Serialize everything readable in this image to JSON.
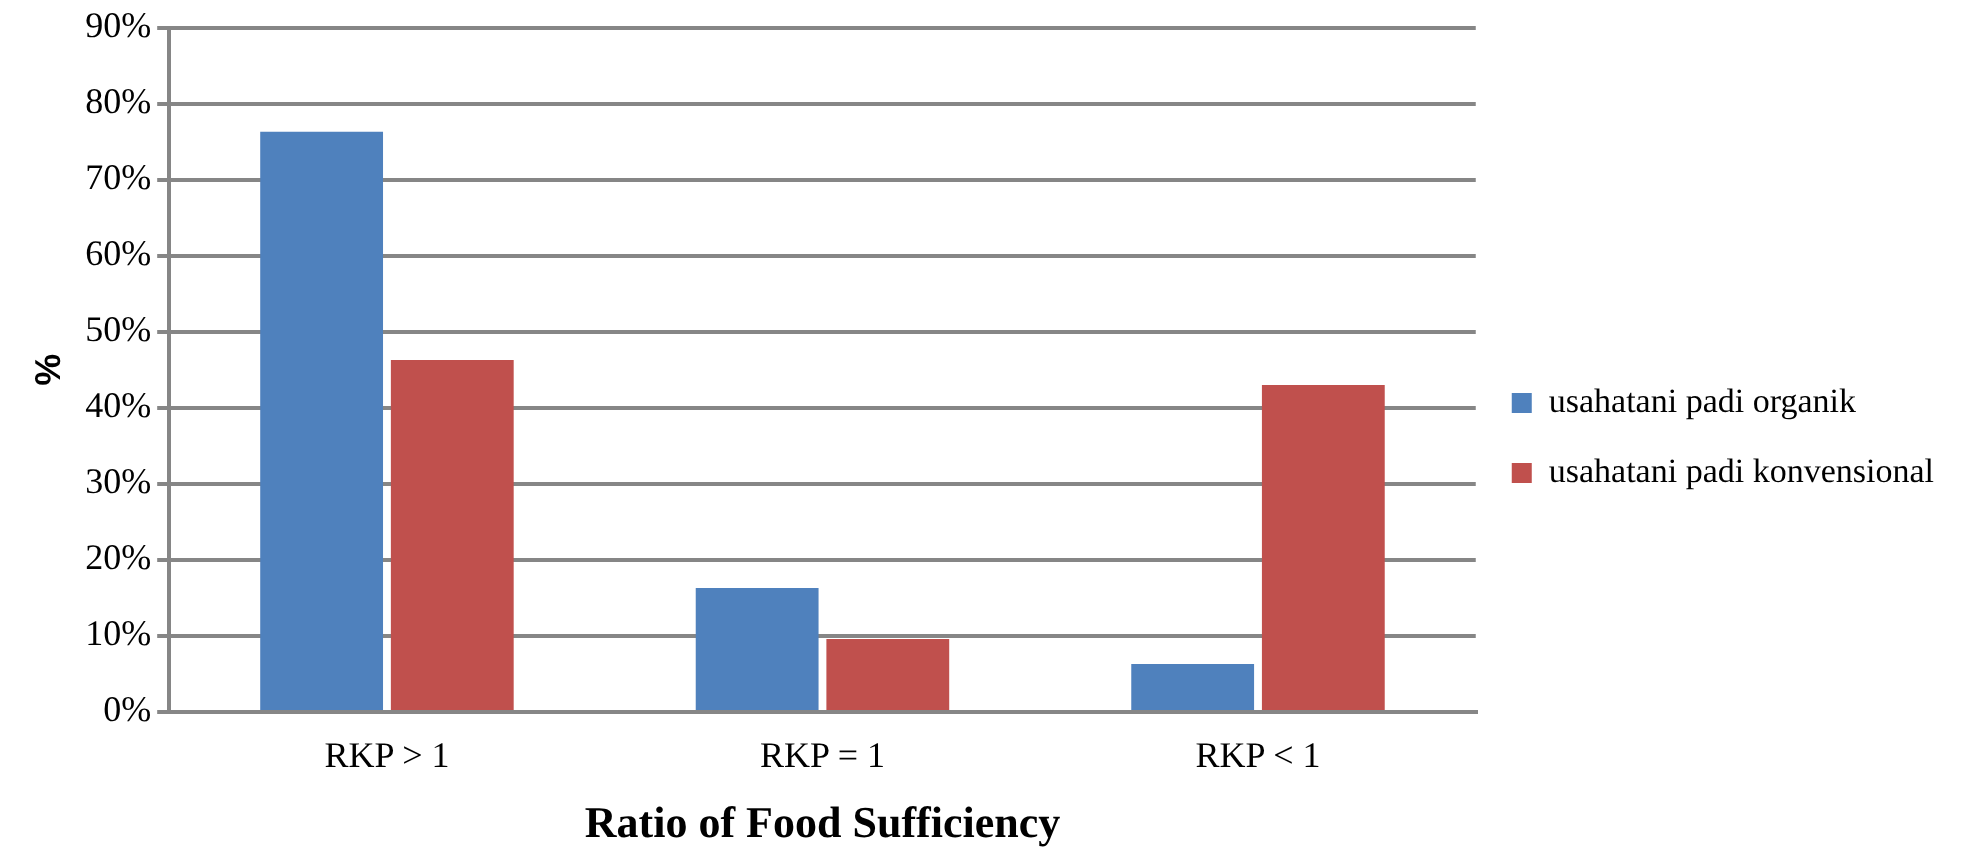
{
  "chart_data": {
    "type": "bar",
    "xlabel": "Ratio of Food Sufficiency",
    "ylabel": "%",
    "categories": [
      "RKP > 1",
      "RKP = 1",
      "RKP < 1"
    ],
    "series": [
      {
        "name": "usahatani padi organik",
        "color": "#4f81bd",
        "values": [
          76.3,
          16.3,
          6.3
        ]
      },
      {
        "name": "usahatani padi konvensional",
        "color": "#c0504d",
        "values": [
          46.3,
          9.6,
          43
        ]
      }
    ],
    "ylim": [
      0,
      90
    ],
    "yticks": [
      {
        "value": 0,
        "label": "0%"
      },
      {
        "value": 10,
        "label": "10%"
      },
      {
        "value": 20,
        "label": "20%"
      },
      {
        "value": 30,
        "label": "30%"
      },
      {
        "value": 40,
        "label": "40%"
      },
      {
        "value": 50,
        "label": "50%"
      },
      {
        "value": 60,
        "label": "60%"
      },
      {
        "value": 70,
        "label": "70%"
      },
      {
        "value": 80,
        "label": "80%"
      },
      {
        "value": 90,
        "label": "90%"
      }
    ],
    "grid": "y",
    "legend": "right"
  }
}
